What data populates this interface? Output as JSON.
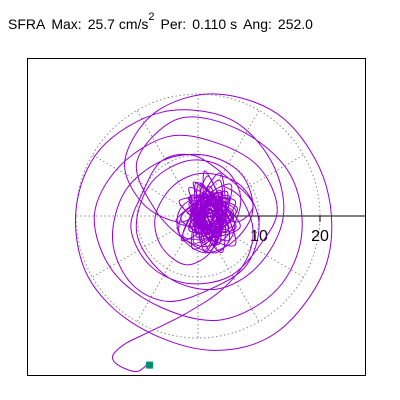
{
  "header": {
    "station": "SFRA",
    "max_label": "Max:",
    "max_value": "25.7 cm/s",
    "max_exponent": "2",
    "per_label": "Per:",
    "per_value": "0.110 s",
    "ang_label": "Ang:",
    "ang_value": "252.0"
  },
  "chart_data": {
    "type": "polar-orbit",
    "radial_ticks": [
      10,
      20
    ],
    "tick_labels": [
      "10",
      "20"
    ],
    "radial_max": 25.7,
    "grid_rings": [
      10,
      20
    ],
    "grid": true,
    "max_point": {
      "magnitude": 25.7,
      "angle_deg": 252.0
    },
    "marker_color": "#008f6e",
    "trace_color": "#9400d3",
    "grid_color": "#888888",
    "trace_description_points": [
      [
        2,
        3
      ],
      [
        6,
        -1
      ],
      [
        9,
        2
      ],
      [
        4,
        7
      ],
      [
        -1,
        10
      ],
      [
        -6,
        9
      ],
      [
        -9,
        4
      ],
      [
        -11,
        -2
      ],
      [
        -8,
        -8
      ],
      [
        -2,
        -11
      ],
      [
        5,
        -10
      ],
      [
        10,
        -5
      ],
      [
        13,
        1
      ],
      [
        10,
        8
      ],
      [
        3,
        12
      ],
      [
        -5,
        13
      ],
      [
        -13,
        8
      ],
      [
        -17,
        0
      ],
      [
        -14,
        -9
      ],
      [
        -6,
        -15
      ],
      [
        4,
        -17
      ],
      [
        13,
        -12
      ],
      [
        17,
        -3
      ],
      [
        15,
        7
      ],
      [
        7,
        14
      ],
      [
        -3,
        16
      ],
      [
        -10,
        9
      ],
      [
        -7,
        1
      ],
      [
        -2,
        -4
      ],
      [
        3,
        -6
      ],
      [
        6,
        -2
      ],
      [
        4,
        2
      ],
      [
        0,
        3
      ],
      [
        -3,
        1
      ],
      [
        -3,
        -3
      ],
      [
        1,
        -5
      ],
      [
        5,
        -3
      ],
      [
        7,
        3
      ],
      [
        4,
        8
      ],
      [
        -2,
        9
      ],
      [
        -8,
        5
      ],
      [
        -10,
        -3
      ],
      [
        -5,
        -10
      ],
      [
        3,
        -12
      ],
      [
        10,
        -8
      ],
      [
        14,
        0
      ],
      [
        12,
        9
      ],
      [
        5,
        16
      ],
      [
        -6,
        17
      ],
      [
        -16,
        11
      ],
      [
        -20,
        1
      ],
      [
        -18,
        -10
      ],
      [
        -10,
        -18
      ],
      [
        2,
        -22
      ],
      [
        13,
        -19
      ],
      [
        21,
        -8
      ],
      [
        21,
        5
      ],
      [
        14,
        16
      ],
      [
        3,
        20
      ],
      [
        -7,
        17
      ],
      [
        -12,
        9
      ],
      [
        -9,
        2
      ],
      [
        -3,
        -1
      ],
      [
        1,
        1
      ],
      [
        3,
        -2
      ],
      [
        2,
        -6
      ],
      [
        -2,
        -8
      ],
      [
        -6,
        -5
      ],
      [
        -7,
        0
      ],
      [
        -4,
        5
      ],
      [
        1,
        7
      ],
      [
        7,
        5
      ],
      [
        10,
        -1
      ],
      [
        8,
        -8
      ],
      [
        2,
        -12
      ],
      [
        -5,
        -14
      ],
      [
        -11,
        -11
      ],
      [
        -14,
        -4
      ],
      [
        -12,
        4
      ],
      [
        -6,
        9
      ],
      [
        1,
        10
      ],
      [
        7,
        7
      ],
      [
        9,
        1
      ],
      [
        6,
        -4
      ],
      [
        1,
        -6
      ],
      [
        -3,
        -3
      ],
      [
        -2,
        1
      ],
      [
        2,
        2
      ],
      [
        4,
        -1
      ],
      [
        2,
        -3
      ],
      [
        -1,
        -2
      ],
      [
        -1,
        0
      ],
      [
        0,
        1
      ],
      [
        1,
        0
      ]
    ],
    "tail_points": [
      [
        -8,
        -24
      ],
      [
        -10,
        -25.5
      ],
      [
        -13,
        -24.5
      ],
      [
        -14,
        -23
      ],
      [
        -12,
        -21
      ],
      [
        -8,
        -19
      ],
      [
        -2,
        -16
      ],
      [
        4,
        -12
      ],
      [
        8,
        -7
      ],
      [
        9,
        -2
      ],
      [
        7,
        3
      ],
      [
        4,
        5
      ]
    ]
  }
}
